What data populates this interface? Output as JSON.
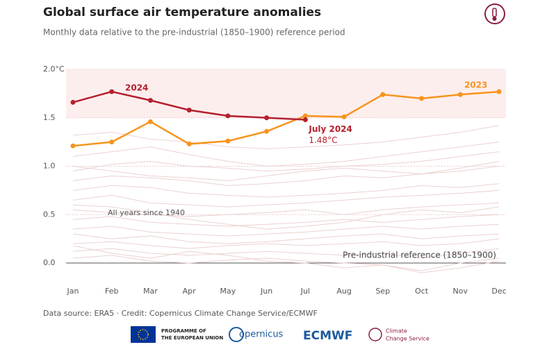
{
  "chart_data": {
    "type": "line",
    "title": "Global surface air temperature anomalies",
    "subtitle": "Monthly data relative to the pre-industrial (1850–1900) reference period",
    "categories": [
      "Jan",
      "Feb",
      "Mar",
      "Apr",
      "May",
      "Jun",
      "Jul",
      "Aug",
      "Sep",
      "Oct",
      "Nov",
      "Dec"
    ],
    "series": [
      {
        "name": "2023",
        "color": "#f7941d",
        "values": [
          1.21,
          1.25,
          1.46,
          1.23,
          1.26,
          1.36,
          1.52,
          1.51,
          1.74,
          1.7,
          1.74,
          1.77
        ]
      },
      {
        "name": "2024",
        "color": "#b5202e",
        "values": [
          1.66,
          1.77,
          1.68,
          1.58,
          1.52,
          1.5,
          1.48,
          null,
          null,
          null,
          null,
          null
        ],
        "value_labels": [
          null,
          null,
          null,
          null,
          null,
          null,
          "1.48°C",
          null,
          null,
          null,
          null,
          null
        ]
      }
    ],
    "background": {
      "label": "All years since 1940",
      "color": "#ecd0d0",
      "lines": [
        [
          1.32,
          1.35,
          1.28,
          1.25,
          1.2,
          1.18,
          1.2,
          1.22,
          1.25,
          1.3,
          1.35,
          1.42
        ],
        [
          1.1,
          1.15,
          1.2,
          1.12,
          1.05,
          1.0,
          1.02,
          1.05,
          1.1,
          1.15,
          1.2,
          1.25
        ],
        [
          0.95,
          1.02,
          1.05,
          1.0,
          0.98,
          0.95,
          0.97,
          1.0,
          1.02,
          1.05,
          1.1,
          1.15
        ],
        [
          0.85,
          0.9,
          0.88,
          0.85,
          0.8,
          0.82,
          0.85,
          0.9,
          0.88,
          0.92,
          0.95,
          1.0
        ],
        [
          0.75,
          0.8,
          0.78,
          0.72,
          0.7,
          0.68,
          0.7,
          0.72,
          0.75,
          0.8,
          0.78,
          0.82
        ],
        [
          0.65,
          0.7,
          0.62,
          0.6,
          0.58,
          0.6,
          0.62,
          0.65,
          0.68,
          0.7,
          0.72,
          0.75
        ],
        [
          0.55,
          0.52,
          0.5,
          0.48,
          0.5,
          0.52,
          0.55,
          0.5,
          0.55,
          0.58,
          0.6,
          0.62
        ],
        [
          0.45,
          0.48,
          0.42,
          0.4,
          0.38,
          0.4,
          0.42,
          0.45,
          0.42,
          0.45,
          0.48,
          0.5
        ],
        [
          0.35,
          0.38,
          0.32,
          0.3,
          0.28,
          0.3,
          0.32,
          0.35,
          0.38,
          0.35,
          0.38,
          0.4
        ],
        [
          0.3,
          0.25,
          0.28,
          0.22,
          0.2,
          0.22,
          0.25,
          0.28,
          0.3,
          0.25,
          0.28,
          0.3
        ],
        [
          0.2,
          0.22,
          0.18,
          0.15,
          0.18,
          0.2,
          0.18,
          0.2,
          0.22,
          0.18,
          0.2,
          0.25
        ],
        [
          0.12,
          0.15,
          0.1,
          0.08,
          0.1,
          0.12,
          0.1,
          0.08,
          0.1,
          0.05,
          0.1,
          0.15
        ],
        [
          0.05,
          0.08,
          0.02,
          0.0,
          0.03,
          0.05,
          0.02,
          0.0,
          -0.02,
          -0.08,
          0.0,
          0.05
        ],
        [
          0.18,
          0.1,
          0.05,
          0.12,
          0.08,
          0.02,
          0.0,
          -0.05,
          -0.02,
          -0.1,
          -0.05,
          0.02
        ],
        [
          0.6,
          0.58,
          0.52,
          0.45,
          0.4,
          0.35,
          0.38,
          0.42,
          0.5,
          0.55,
          0.52,
          0.58
        ],
        [
          1.0,
          0.95,
          0.9,
          0.88,
          0.85,
          0.9,
          0.95,
          0.98,
          0.95,
          0.92,
          0.98,
          1.05
        ]
      ]
    },
    "annotations": {
      "series_label_2024": "2024",
      "series_label_2023": "2023",
      "july": "July 2024",
      "reference": "Pre-industrial reference (1850–1900)"
    },
    "shaded_range": [
      1.5,
      2.0
    ],
    "ylim": [
      -0.12,
      2.0
    ],
    "yticks": [
      {
        "value": 0,
        "label": "0.0"
      },
      0.5,
      {
        "value": 1,
        "label": "1.0"
      },
      1.5,
      {
        "value": 2,
        "label": "2.0°C"
      }
    ],
    "grid": true
  },
  "footer": {
    "source": "Data source: ERA5 · Credit: Copernicus Climate Change Service/ECMWF",
    "logos": {
      "eu_1": "PROGRAMME OF",
      "eu_2": "THE EUROPEAN UNION",
      "copernicus": "opernicus",
      "ecmwf": "ECMWF",
      "c3s_1": "Climate",
      "c3s_2": "Change Service"
    }
  }
}
